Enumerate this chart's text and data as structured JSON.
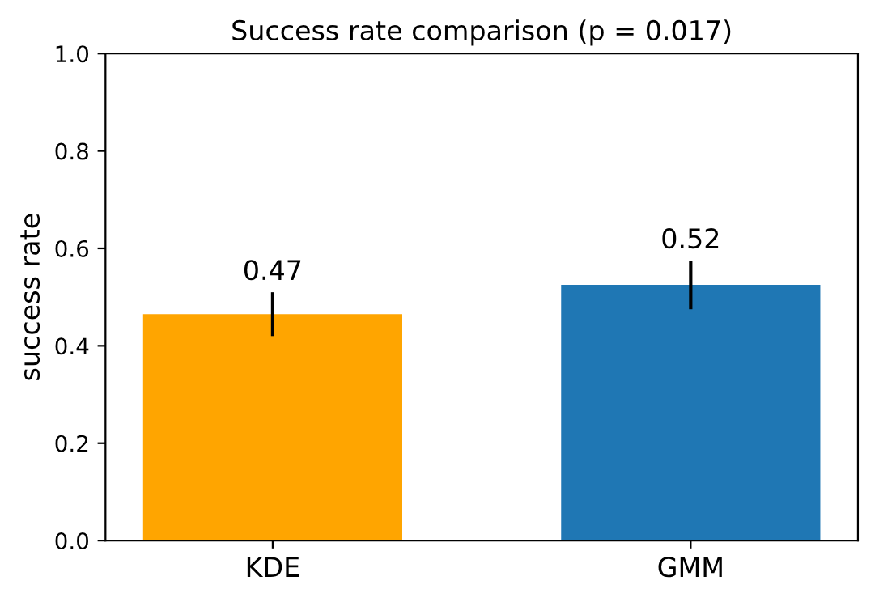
{
  "chart_data": {
    "type": "bar",
    "title": "Success rate comparison (p = 0.017)",
    "ylabel": "success rate",
    "categories": [
      "KDE",
      "GMM"
    ],
    "values": [
      0.465,
      0.525
    ],
    "colors": [
      "#ffa500",
      "#1f77b4"
    ],
    "errors": [
      0.045,
      0.05
    ],
    "value_labels": [
      "0.47",
      "0.52"
    ],
    "ylim": [
      0,
      1
    ],
    "yticks": [
      {
        "value": 0,
        "label": "0.0"
      },
      0.2,
      0.4,
      0.6,
      0.8,
      {
        "value": 1,
        "label": "1.0"
      }
    ],
    "grid": false
  }
}
